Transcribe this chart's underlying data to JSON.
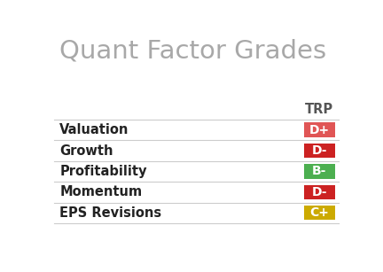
{
  "title": "Quant Factor Grades",
  "title_color": "#a8a8a8",
  "title_fontsize": 21,
  "column_header": "TRP",
  "column_header_color": "#555555",
  "column_header_fontsize": 10.5,
  "background_color": "#ffffff",
  "row_line_color": "#cccccc",
  "rows": [
    {
      "label": "Valuation",
      "grade": "D+",
      "grade_color": "#e05555"
    },
    {
      "label": "Growth",
      "grade": "D-",
      "grade_color": "#cc2222"
    },
    {
      "label": "Profitability",
      "grade": "B-",
      "grade_color": "#4caf50"
    },
    {
      "label": "Momentum",
      "grade": "D-",
      "grade_color": "#cc2222"
    },
    {
      "label": "EPS Revisions",
      "grade": "C+",
      "grade_color": "#ccaa00"
    }
  ],
  "label_fontsize": 10.5,
  "grade_fontsize": 10,
  "grade_text_color": "#ffffff",
  "figsize": [
    4.32,
    3.07
  ],
  "dpi": 100
}
